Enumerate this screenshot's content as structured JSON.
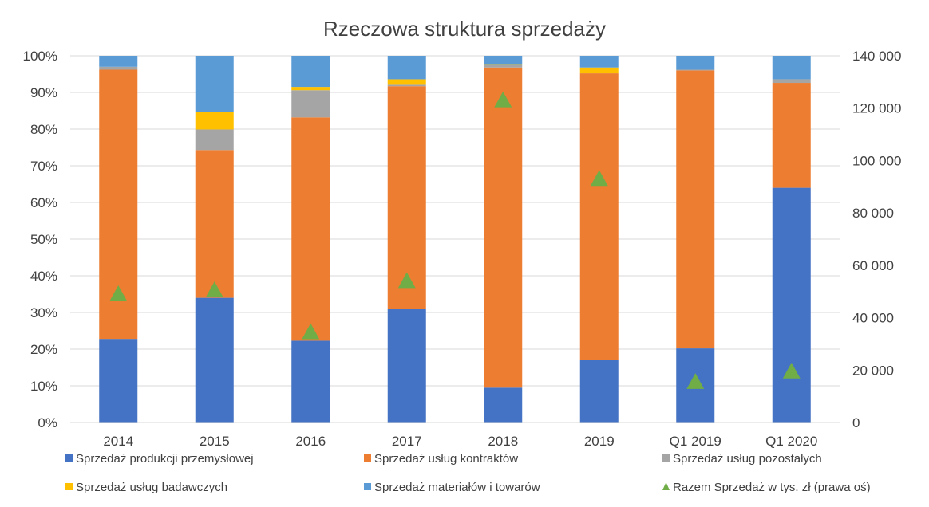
{
  "chart_data": {
    "type": "bar",
    "stacked": true,
    "title": "Rzeczowa struktura sprzedaży",
    "categories": [
      "2014",
      "2015",
      "2016",
      "2017",
      "2018",
      "2019",
      "Q1 2019",
      "Q1 2020"
    ],
    "y_left": {
      "ylim": [
        0,
        100
      ],
      "ticks": [
        "0%",
        "10%",
        "20%",
        "30%",
        "40%",
        "50%",
        "60%",
        "70%",
        "80%",
        "90%",
        "100%"
      ]
    },
    "y_right": {
      "ylim": [
        0,
        140000
      ],
      "ticks": [
        "0",
        "20 000",
        "40 000",
        "60 000",
        "80 000",
        "100 000",
        "120 000",
        "140 000"
      ]
    },
    "grid": true,
    "legend_position": "bottom",
    "series": [
      {
        "name": "Sprzedaż produkcji przemysłowej",
        "color": "#4472C4",
        "values": [
          22.8,
          34.0,
          22.3,
          31.0,
          9.5,
          17.0,
          20.2,
          64.0
        ]
      },
      {
        "name": "Sprzedaż usług kontraktów",
        "color": "#ED7D31",
        "values": [
          73.4,
          40.3,
          60.9,
          60.7,
          87.3,
          78.2,
          75.8,
          28.6
        ]
      },
      {
        "name": "Sprzedaż usług pozostałych",
        "color": "#A5A5A5",
        "values": [
          0.8,
          5.6,
          7.4,
          0.6,
          0.7,
          0.0,
          0.2,
          1.0
        ]
      },
      {
        "name": "Sprzedaż  usług badawczych",
        "color": "#FFC000",
        "values": [
          0.0,
          4.7,
          0.9,
          1.3,
          0.2,
          1.6,
          0.0,
          0.0
        ]
      },
      {
        "name": "Sprzedaż materiałów i towarów",
        "color": "#5B9BD5",
        "values": [
          3.0,
          15.4,
          8.5,
          6.4,
          2.3,
          3.2,
          3.8,
          6.4
        ]
      }
    ],
    "line_series": {
      "name": "Razem Sprzedaż w tys. zł (prawa oś)",
      "color": "#70AD47",
      "axis": "right",
      "marker": "triangle",
      "values": [
        49000,
        50500,
        34500,
        54000,
        123000,
        93000,
        15500,
        19500
      ]
    }
  }
}
